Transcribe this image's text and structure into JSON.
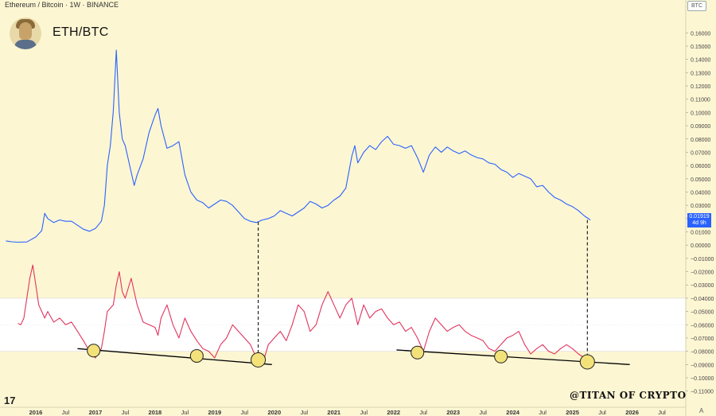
{
  "header": {
    "symbol": "Ethereum / Bitcoin · 1W · BINANCE",
    "pair": "ETH/BTC",
    "currency": "BTC"
  },
  "price_badge": {
    "value": "0.01919",
    "countdown": "4d 9h"
  },
  "watermark": "@TITAN OF CRYPTO",
  "logo_text": "17",
  "corner_label": "A",
  "colors": {
    "background": "#fdf6d3",
    "price_line": "#2962ff",
    "oscillator_line": "#e0345e",
    "oscillator_band": "#ffffff",
    "marker_fill": "#f3e27a",
    "trendline": "#000000"
  },
  "chart_data": {
    "type": "line",
    "x_axis": {
      "ticks": [
        "2016",
        "Jul",
        "2017",
        "Jul",
        "2018",
        "Jul",
        "2019",
        "Jul",
        "2020",
        "Jul",
        "2021",
        "Jul",
        "2022",
        "Jul",
        "2023",
        "Jul",
        "2024",
        "Jul",
        "2025",
        "Jul",
        "2026",
        "Jul"
      ],
      "tick_x": [
        2016.0,
        2016.5,
        2017.0,
        2017.5,
        2018.0,
        2018.5,
        2019.0,
        2019.5,
        2020.0,
        2020.5,
        2021.0,
        2021.5,
        2022.0,
        2022.5,
        2023.0,
        2023.5,
        2024.0,
        2024.5,
        2025.0,
        2025.5,
        2026.0,
        2026.5
      ],
      "range": [
        2015.4,
        2026.9
      ]
    },
    "y_axis": {
      "ticks": [
        "0.16000",
        "0.15000",
        "0.14000",
        "0.13000",
        "0.12000",
        "0.11000",
        "0.10000",
        "0.09000",
        "0.08000",
        "0.07000",
        "0.06000",
        "0.05000",
        "0.04000",
        "0.03000",
        "0.02000",
        "0.01000",
        "0.00000",
        "−0.01000",
        "−0.02000",
        "−0.03000",
        "−0.04000",
        "−0.05000",
        "−0.06000",
        "−0.07000",
        "−0.08000",
        "−0.09000",
        "−0.10000",
        "−0.11000"
      ],
      "range": [
        -0.115,
        0.168
      ]
    },
    "series": [
      {
        "x": [
          2015.5,
          2015.6,
          2015.7,
          2015.85,
          2016.0,
          2016.1,
          2016.15,
          2016.2,
          2016.3,
          2016.4,
          2016.5,
          2016.6,
          2016.7,
          2016.8,
          2016.9,
          2017.0,
          2017.1,
          2017.15,
          2017.2,
          2017.25,
          2017.3,
          2017.35,
          2017.4,
          2017.45,
          2017.5,
          2017.6,
          2017.65,
          2017.7,
          2017.8,
          2017.9,
          2018.0,
          2018.05,
          2018.1,
          2018.2,
          2018.3,
          2018.4,
          2018.5,
          2018.6,
          2018.7,
          2018.8,
          2018.9,
          2019.0,
          2019.1,
          2019.2,
          2019.3,
          2019.4,
          2019.5,
          2019.6,
          2019.7,
          2019.8,
          2019.9,
          2020.0,
          2020.1,
          2020.2,
          2020.3,
          2020.4,
          2020.5,
          2020.6,
          2020.7,
          2020.8,
          2020.9,
          2021.0,
          2021.1,
          2021.2,
          2021.3,
          2021.35,
          2021.4,
          2021.5,
          2021.6,
          2021.7,
          2021.8,
          2021.9,
          2022.0,
          2022.1,
          2022.2,
          2022.3,
          2022.4,
          2022.5,
          2022.6,
          2022.7,
          2022.8,
          2022.9,
          2023.0,
          2023.1,
          2023.2,
          2023.3,
          2023.4,
          2023.5,
          2023.6,
          2023.7,
          2023.8,
          2023.9,
          2024.0,
          2024.1,
          2024.2,
          2024.3,
          2024.4,
          2024.5,
          2024.6,
          2024.7,
          2024.8,
          2024.9,
          2025.0,
          2025.1,
          2025.2,
          2025.3
        ],
        "values": [
          0.0032,
          0.0025,
          0.0022,
          0.0024,
          0.0062,
          0.011,
          0.024,
          0.02,
          0.017,
          0.019,
          0.018,
          0.018,
          0.015,
          0.012,
          0.0105,
          0.0125,
          0.018,
          0.03,
          0.06,
          0.075,
          0.101,
          0.147,
          0.1,
          0.08,
          0.075,
          0.055,
          0.045,
          0.053,
          0.065,
          0.085,
          0.098,
          0.103,
          0.09,
          0.073,
          0.075,
          0.078,
          0.053,
          0.04,
          0.034,
          0.032,
          0.028,
          0.031,
          0.034,
          0.033,
          0.03,
          0.025,
          0.02,
          0.018,
          0.017,
          0.019,
          0.02,
          0.022,
          0.026,
          0.024,
          0.022,
          0.025,
          0.028,
          0.033,
          0.031,
          0.028,
          0.03,
          0.034,
          0.037,
          0.043,
          0.067,
          0.075,
          0.062,
          0.07,
          0.075,
          0.072,
          0.078,
          0.082,
          0.076,
          0.075,
          0.073,
          0.075,
          0.066,
          0.055,
          0.068,
          0.074,
          0.07,
          0.074,
          0.071,
          0.069,
          0.071,
          0.068,
          0.066,
          0.065,
          0.062,
          0.061,
          0.057,
          0.055,
          0.051,
          0.054,
          0.052,
          0.05,
          0.044,
          0.045,
          0.04,
          0.036,
          0.034,
          0.031,
          0.029,
          0.026,
          0.022,
          0.019
        ]
      },
      {
        "x": [
          2015.7,
          2015.75,
          2015.8,
          2015.85,
          2015.9,
          2015.95,
          2016.0,
          2016.05,
          2016.1,
          2016.15,
          2016.2,
          2016.3,
          2016.4,
          2016.5,
          2016.6,
          2016.7,
          2016.8,
          2016.9,
          2017.0,
          2017.1,
          2017.15,
          2017.2,
          2017.3,
          2017.35,
          2017.4,
          2017.45,
          2017.5,
          2017.6,
          2017.7,
          2017.8,
          2017.9,
          2018.0,
          2018.05,
          2018.1,
          2018.2,
          2018.3,
          2018.4,
          2018.5,
          2018.6,
          2018.7,
          2018.8,
          2018.9,
          2019.0,
          2019.1,
          2019.2,
          2019.3,
          2019.4,
          2019.5,
          2019.6,
          2019.7,
          2019.8,
          2019.9,
          2020.0,
          2020.1,
          2020.2,
          2020.3,
          2020.4,
          2020.5,
          2020.6,
          2020.7,
          2020.8,
          2020.9,
          2021.0,
          2021.1,
          2021.2,
          2021.3,
          2021.35,
          2021.4,
          2021.5,
          2021.6,
          2021.7,
          2021.8,
          2021.9,
          2022.0,
          2022.1,
          2022.2,
          2022.3,
          2022.4,
          2022.5,
          2022.6,
          2022.7,
          2022.8,
          2022.9,
          2023.0,
          2023.1,
          2023.2,
          2023.3,
          2023.4,
          2023.5,
          2023.6,
          2023.7,
          2023.8,
          2023.9,
          2024.0,
          2024.1,
          2024.2,
          2024.3,
          2024.4,
          2024.5,
          2024.6,
          2024.7,
          2024.8,
          2024.9,
          2025.0,
          2025.1,
          2025.2,
          2025.3
        ],
        "values": [
          -0.059,
          -0.06,
          -0.055,
          -0.04,
          -0.025,
          -0.015,
          -0.03,
          -0.045,
          -0.05,
          -0.055,
          -0.05,
          -0.058,
          -0.055,
          -0.06,
          -0.058,
          -0.065,
          -0.072,
          -0.08,
          -0.085,
          -0.078,
          -0.065,
          -0.05,
          -0.045,
          -0.03,
          -0.02,
          -0.035,
          -0.04,
          -0.025,
          -0.045,
          -0.058,
          -0.06,
          -0.062,
          -0.068,
          -0.055,
          -0.045,
          -0.06,
          -0.07,
          -0.055,
          -0.065,
          -0.072,
          -0.078,
          -0.08,
          -0.085,
          -0.075,
          -0.07,
          -0.06,
          -0.065,
          -0.07,
          -0.075,
          -0.085,
          -0.09,
          -0.075,
          -0.07,
          -0.065,
          -0.072,
          -0.06,
          -0.045,
          -0.05,
          -0.065,
          -0.06,
          -0.045,
          -0.035,
          -0.045,
          -0.055,
          -0.045,
          -0.04,
          -0.05,
          -0.06,
          -0.045,
          -0.055,
          -0.05,
          -0.048,
          -0.055,
          -0.06,
          -0.058,
          -0.065,
          -0.062,
          -0.07,
          -0.08,
          -0.065,
          -0.055,
          -0.06,
          -0.065,
          -0.062,
          -0.06,
          -0.065,
          -0.068,
          -0.07,
          -0.072,
          -0.078,
          -0.08,
          -0.075,
          -0.07,
          -0.068,
          -0.065,
          -0.075,
          -0.082,
          -0.078,
          -0.075,
          -0.08,
          -0.082,
          -0.078,
          -0.075,
          -0.078,
          -0.082,
          -0.085,
          -0.087
        ]
      }
    ],
    "band": [
      -0.04,
      -0.08
    ],
    "trendlines": [
      {
        "x": [
          2016.7,
          2019.96
        ],
        "y": [
          -0.078,
          -0.09
        ]
      },
      {
        "x": [
          2022.05,
          2025.96
        ],
        "y": [
          -0.079,
          -0.09
        ]
      }
    ],
    "markers": [
      {
        "x": 2016.97,
        "y": -0.0795
      },
      {
        "x": 2018.7,
        "y": -0.0835
      },
      {
        "x": 2019.73,
        "y": -0.0865
      },
      {
        "x": 2022.4,
        "y": -0.081
      },
      {
        "x": 2023.8,
        "y": -0.084
      },
      {
        "x": 2025.25,
        "y": -0.088
      }
    ],
    "verticals": [
      {
        "x": 2019.73,
        "y_top": 0.0175,
        "y_bottom": -0.0865
      },
      {
        "x": 2025.25,
        "y_top": 0.019,
        "y_bottom": -0.088
      }
    ]
  }
}
